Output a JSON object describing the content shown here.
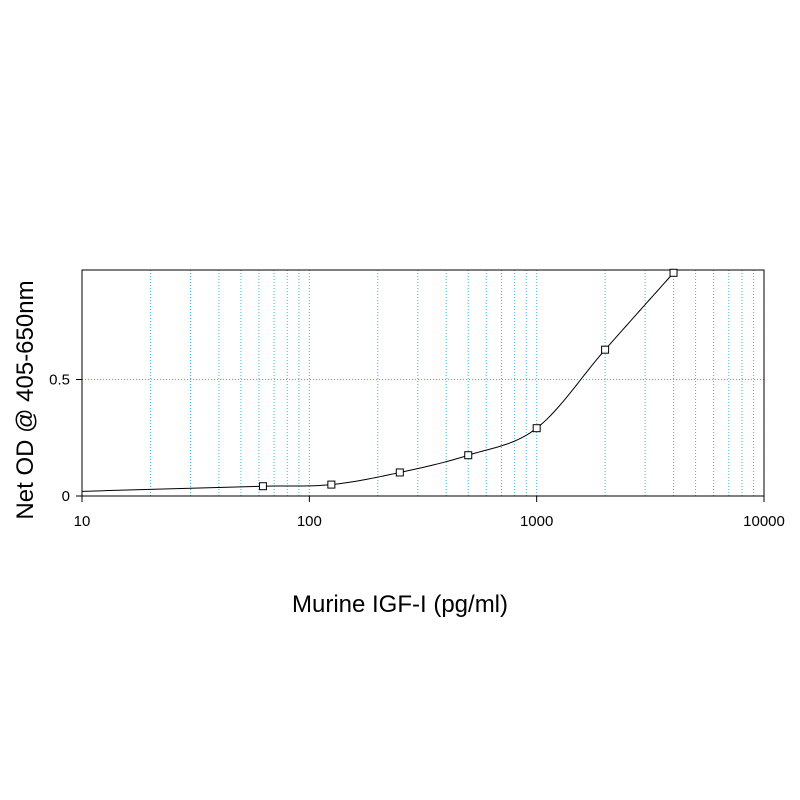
{
  "chart_data": {
    "type": "scatter",
    "title": "",
    "xlabel": "Murine IGF-I (pg/ml)",
    "ylabel": "Net OD @ 405-650nm",
    "xscale": "log",
    "xlim": [
      10,
      10000
    ],
    "ylim": [
      0,
      0.97
    ],
    "xticks": [
      {
        "value": 10,
        "label": "10"
      },
      {
        "value": 100,
        "label": "100"
      },
      {
        "value": 1000,
        "label": "1000"
      },
      {
        "value": 10000,
        "label": "10000"
      }
    ],
    "yticks": [
      {
        "value": 0,
        "label": "0"
      },
      {
        "value": 0.5,
        "label": "0.5"
      }
    ],
    "grid": true,
    "legend": "none",
    "colors": {
      "grid": "#3cb8d8",
      "line": "#000000",
      "marker": "#000000"
    },
    "series": [
      {
        "x": [
          62.5,
          125,
          250,
          500,
          1000,
          2000,
          4000
        ],
        "y": [
          0.042,
          0.049,
          0.101,
          0.175,
          0.291,
          0.628,
          0.958
        ],
        "fit": "4-parameter logistic"
      }
    ]
  }
}
